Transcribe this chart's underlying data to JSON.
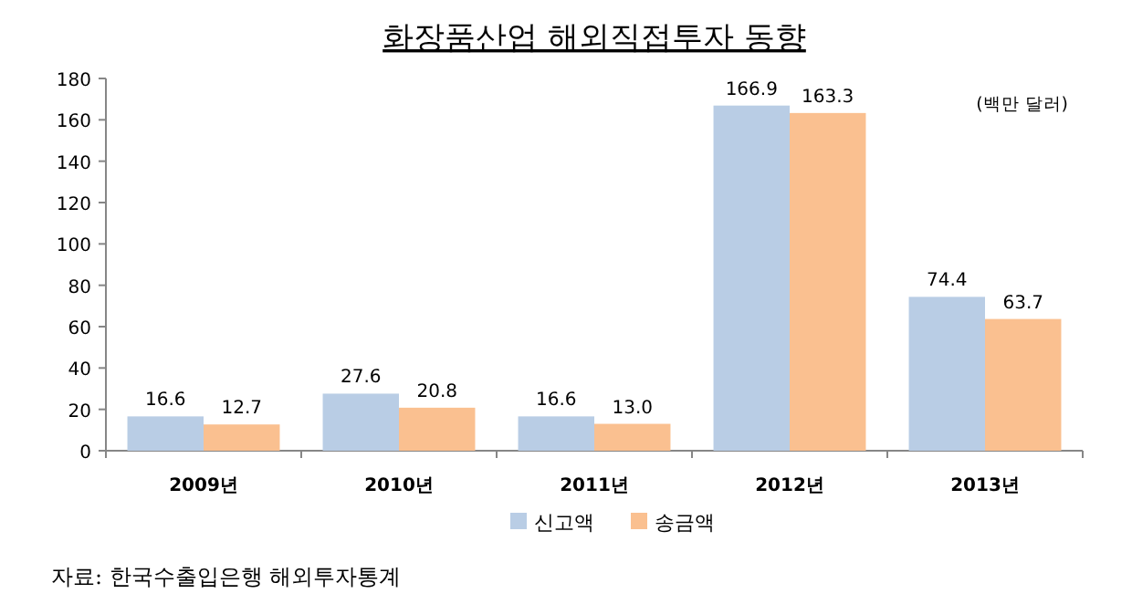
{
  "chart_data": {
    "type": "bar",
    "title": "화장품산업 해외직접투자 동향",
    "categories": [
      "2009년",
      "2010년",
      "2011년",
      "2012년",
      "2013년"
    ],
    "series": [
      {
        "name": "신고액",
        "color": "#b9cde5",
        "values": [
          16.6,
          27.6,
          16.6,
          166.9,
          74.4
        ]
      },
      {
        "name": "송금액",
        "color": "#fac090",
        "values": [
          12.7,
          20.8,
          13.0,
          163.3,
          63.7
        ],
        "value_labels": [
          "12.7",
          "20.8",
          "13.0",
          "163.3",
          "63.7"
        ]
      }
    ],
    "ylim": [
      0,
      180
    ],
    "yticks": [
      0,
      20,
      40,
      60,
      80,
      100,
      120,
      140,
      160,
      180
    ],
    "data_labels": true,
    "legend": "bottom",
    "grid": false,
    "annotations": [
      "(백만 달러)",
      "자료: 한국수출입은행 해외투자통계"
    ]
  }
}
